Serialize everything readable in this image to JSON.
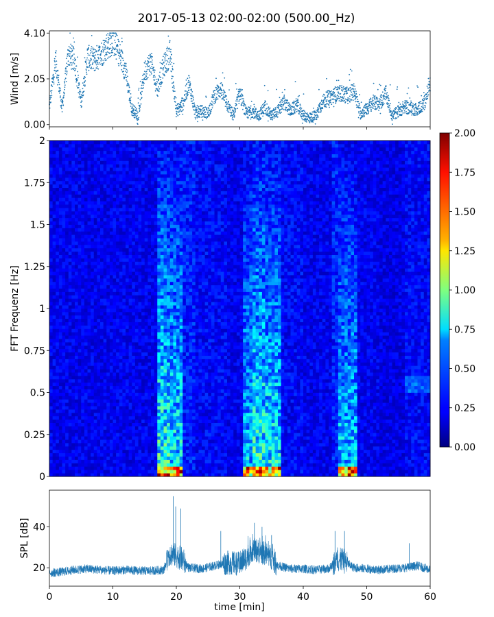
{
  "figure": {
    "title": "2017-05-13 02:00-02:00 (500.00_Hz)"
  },
  "chart_data": [
    {
      "type": "scatter",
      "ylabel": "Wind [m/s]",
      "xlim": [
        0,
        60
      ],
      "ylim": [
        -0.1,
        4.2
      ],
      "yticks": [
        "0.00",
        "2.05",
        "4.10"
      ],
      "ytick_values": [
        0,
        2.05,
        4.1
      ],
      "marker_color": "#1f77b4",
      "trend": [
        [
          0,
          0.8
        ],
        [
          1,
          2.9
        ],
        [
          2,
          0.7
        ],
        [
          3,
          3.2
        ],
        [
          4,
          2.8
        ],
        [
          5,
          1.0
        ],
        [
          6,
          3.0
        ],
        [
          7,
          2.9
        ],
        [
          8,
          3.1
        ],
        [
          9,
          3.5
        ],
        [
          10,
          3.8
        ],
        [
          11,
          3.2
        ],
        [
          12,
          2.4
        ],
        [
          13,
          0.7
        ],
        [
          14,
          0.4
        ],
        [
          15,
          2.4
        ],
        [
          16,
          2.8
        ],
        [
          17,
          1.6
        ],
        [
          18,
          2.6
        ],
        [
          19,
          3.2
        ],
        [
          20,
          0.6
        ],
        [
          21,
          0.9
        ],
        [
          22,
          1.9
        ],
        [
          23,
          0.5
        ],
        [
          24,
          0.6
        ],
        [
          25,
          0.5
        ],
        [
          26,
          1.3
        ],
        [
          27,
          1.6
        ],
        [
          28,
          0.9
        ],
        [
          29,
          0.4
        ],
        [
          30,
          1.4
        ],
        [
          31,
          0.5
        ],
        [
          32,
          0.6
        ],
        [
          33,
          0.4
        ],
        [
          34,
          0.8
        ],
        [
          35,
          0.4
        ],
        [
          36,
          0.6
        ],
        [
          37,
          1.0
        ],
        [
          38,
          0.6
        ],
        [
          39,
          0.9
        ],
        [
          40,
          0.4
        ],
        [
          41,
          0.3
        ],
        [
          42,
          0.4
        ],
        [
          43,
          1.0
        ],
        [
          44,
          1.2
        ],
        [
          45,
          1.3
        ],
        [
          46,
          1.4
        ],
        [
          47,
          1.3
        ],
        [
          48,
          1.5
        ],
        [
          49,
          0.5
        ],
        [
          50,
          0.7
        ],
        [
          51,
          1.0
        ],
        [
          52,
          0.9
        ],
        [
          53,
          1.4
        ],
        [
          54,
          0.4
        ],
        [
          55,
          0.6
        ],
        [
          56,
          0.8
        ],
        [
          57,
          0.7
        ],
        [
          58,
          0.7
        ],
        [
          59,
          0.9
        ],
        [
          60,
          1.8
        ]
      ]
    },
    {
      "type": "heatmap",
      "ylabel": "FFT Frequenz [Hz]",
      "xlim": [
        0,
        60
      ],
      "ylim": [
        0,
        2
      ],
      "yticks": [
        "0",
        "0.25",
        "0.5",
        "0.75",
        "1",
        "1.25",
        "1.5",
        "1.75",
        "2"
      ],
      "ytick_values": [
        0,
        0.25,
        0.5,
        0.75,
        1,
        1.25,
        1.5,
        1.75,
        2
      ],
      "colormap": "jet",
      "colorbar": {
        "range": [
          0,
          2
        ],
        "ticks": [
          "0.00",
          "0.25",
          "0.50",
          "0.75",
          "1.00",
          "1.25",
          "1.50",
          "1.75",
          "2.00"
        ],
        "tick_values": [
          0,
          0.25,
          0.5,
          0.75,
          1,
          1.25,
          1.5,
          1.75,
          2
        ]
      },
      "column_levels": [
        [
          0,
          17,
          0.22
        ],
        [
          17,
          19,
          0.55
        ],
        [
          19,
          21,
          0.5
        ],
        [
          21,
          23,
          0.3
        ],
        [
          23,
          28,
          0.25
        ],
        [
          28,
          30.5,
          0.22
        ],
        [
          30.5,
          32,
          0.45
        ],
        [
          32,
          34,
          0.55
        ],
        [
          34,
          36.5,
          0.5
        ],
        [
          36.5,
          40,
          0.25
        ],
        [
          40,
          44.5,
          0.22
        ],
        [
          44.5,
          45.5,
          0.3
        ],
        [
          45.5,
          48.5,
          0.45
        ],
        [
          48.5,
          52,
          0.22
        ],
        [
          52,
          56,
          0.2
        ],
        [
          56,
          60,
          0.25
        ]
      ]
    },
    {
      "type": "line",
      "ylabel": "SPL [dB]",
      "xlabel": "time [min]",
      "xlim": [
        0,
        60
      ],
      "ylim": [
        11,
        58
      ],
      "yticks": [
        "20",
        "40"
      ],
      "ytick_values": [
        20,
        40
      ],
      "xticks": [
        "0",
        "10",
        "20",
        "30",
        "40",
        "50",
        "60"
      ],
      "xtick_values": [
        0,
        10,
        20,
        30,
        40,
        50,
        60
      ],
      "line_color": "#1f77b4",
      "trend": [
        [
          0,
          17.5
        ],
        [
          2,
          18
        ],
        [
          4,
          19
        ],
        [
          6,
          19.5
        ],
        [
          8,
          19
        ],
        [
          10,
          18.5
        ],
        [
          12,
          19
        ],
        [
          14,
          18.5
        ],
        [
          16,
          18.5
        ],
        [
          18,
          19
        ],
        [
          19,
          27
        ],
        [
          20,
          26
        ],
        [
          21,
          24
        ],
        [
          22,
          20
        ],
        [
          24,
          19.5
        ],
        [
          26,
          21
        ],
        [
          28,
          22.5
        ],
        [
          30,
          22
        ],
        [
          31,
          25
        ],
        [
          32,
          29
        ],
        [
          34,
          27
        ],
        [
          35,
          25
        ],
        [
          36,
          21
        ],
        [
          38,
          19.5
        ],
        [
          40,
          19.5
        ],
        [
          42,
          19
        ],
        [
          44,
          19.5
        ],
        [
          45,
          23
        ],
        [
          46,
          24
        ],
        [
          47,
          22
        ],
        [
          48,
          20
        ],
        [
          50,
          19.5
        ],
        [
          52,
          19
        ],
        [
          54,
          19.5
        ],
        [
          56,
          20
        ],
        [
          58,
          21
        ],
        [
          60,
          19
        ]
      ],
      "peaks": [
        [
          19.5,
          55
        ],
        [
          19.9,
          50
        ],
        [
          20.7,
          49
        ],
        [
          27,
          38
        ],
        [
          32.3,
          42
        ],
        [
          33.5,
          40
        ],
        [
          35,
          36
        ],
        [
          45,
          38
        ],
        [
          46.5,
          38
        ],
        [
          56.7,
          32
        ]
      ]
    }
  ]
}
